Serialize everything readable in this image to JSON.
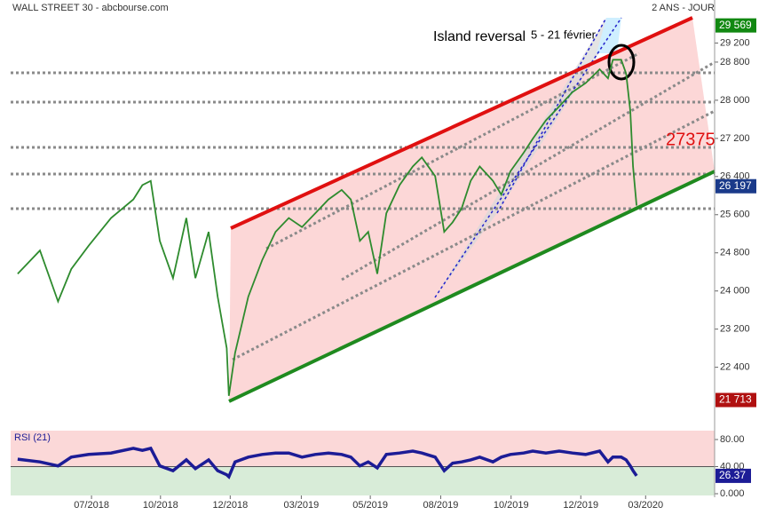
{
  "chart_data": [
    {
      "type": "line",
      "title": "WALL STREET 30 - abcbourse.com",
      "subtitle": "2 ANS - JOUR",
      "annotations": [
        "Island reversal",
        "5 - 21 février"
      ],
      "level_annotation": 27375,
      "xlim": [
        -1,
        100
      ],
      "xticks": [
        {
          "value": 10.6,
          "label": "07/2018"
        },
        {
          "value": 20.5,
          "label": "10/2018"
        },
        {
          "value": 30.5,
          "label": "12/2018"
        },
        {
          "value": 40.7,
          "label": "03/2019"
        },
        {
          "value": 50.6,
          "label": "05/2019"
        },
        {
          "value": 60.7,
          "label": "08/2019"
        },
        {
          "value": 70.8,
          "label": "10/2019"
        },
        {
          "value": 80.8,
          "label": "12/2019"
        },
        {
          "value": 90.1,
          "label": "03/2020"
        }
      ],
      "ylim": [
        21350,
        29730
      ],
      "yticks": [
        {
          "value": 29200,
          "label": "29 200"
        },
        {
          "value": 28800,
          "label": "28 800"
        },
        {
          "value": 28000,
          "label": "28 000"
        },
        {
          "value": 27200,
          "label": "27 200"
        },
        {
          "value": 26400,
          "label": "26 400"
        },
        {
          "value": 25600,
          "label": "25 600"
        },
        {
          "value": 24800,
          "label": "24 800"
        },
        {
          "value": 24000,
          "label": "24 000"
        },
        {
          "value": 23200,
          "label": "23 200"
        },
        {
          "value": 22400,
          "label": "22 400"
        }
      ],
      "price_labels": [
        {
          "value": 29569,
          "label": "29 569",
          "color": "#118811"
        },
        {
          "value": 26197,
          "label": "26 197",
          "color": "#1a3a8a"
        },
        {
          "value": 21713,
          "label": "21 713",
          "color": "#b01010"
        }
      ],
      "series": [
        {
          "color": "#2e8b2e",
          "x": [
            0.0,
            3.2,
            5.8,
            7.7,
            10.2,
            13.4,
            16.6,
            17.9,
            19.1,
            20.4,
            22.3,
            24.2,
            25.5,
            27.4,
            28.7,
            30.0,
            30.3,
            31.2,
            33.1,
            35.1,
            37.0,
            38.9,
            40.8,
            42.7,
            44.6,
            46.5,
            47.8,
            49.1,
            50.3,
            51.6,
            52.9,
            54.8,
            56.7,
            58.0,
            59.9,
            61.2,
            62.4,
            63.7,
            65.0,
            66.3,
            68.2,
            69.4,
            70.7,
            72.6,
            73.9,
            75.8,
            77.7,
            79.6,
            81.5,
            83.5,
            84.7,
            85.4,
            86.6,
            87.3,
            87.9,
            88.3,
            88.8
          ],
          "values": [
            24360,
            24850,
            23780,
            24460,
            24950,
            25530,
            25920,
            26220,
            26310,
            25050,
            24270,
            25530,
            24270,
            25240,
            23880,
            22800,
            21800,
            22700,
            23880,
            24650,
            25240,
            25530,
            25340,
            25630,
            25920,
            26120,
            25920,
            25050,
            25240,
            24360,
            25630,
            26220,
            26610,
            26800,
            26410,
            25240,
            25440,
            25730,
            26310,
            26610,
            26310,
            26020,
            26510,
            26900,
            27190,
            27580,
            27870,
            28170,
            28360,
            28650,
            28460,
            28850,
            28850,
            28560,
            27780,
            26610,
            25790
          ]
        }
      ]
    },
    {
      "type": "line",
      "title": "RSI (21)",
      "xlim": [
        -1,
        100
      ],
      "ylim": [
        -2.6,
        93.1
      ],
      "yticks": [
        {
          "value": 80,
          "label": "80.00"
        },
        {
          "value": 40,
          "label": "40.00"
        },
        {
          "value": 0,
          "label": "0.000"
        }
      ],
      "last_label": {
        "value": 26.37,
        "label": "26.37"
      },
      "series": [
        {
          "color": "#1c1c96",
          "x": [
            0.0,
            3.2,
            5.8,
            7.7,
            10.2,
            13.4,
            16.6,
            17.9,
            19.1,
            20.4,
            22.3,
            24.2,
            25.5,
            27.4,
            28.7,
            30.0,
            30.3,
            31.2,
            33.1,
            35.1,
            37.0,
            38.9,
            40.8,
            42.7,
            44.6,
            46.5,
            47.8,
            49.1,
            50.3,
            51.6,
            52.9,
            54.8,
            56.7,
            58.0,
            59.9,
            61.2,
            62.4,
            63.7,
            65.0,
            66.3,
            68.2,
            69.4,
            70.7,
            72.6,
            73.9,
            75.8,
            77.7,
            79.6,
            81.5,
            83.5,
            84.7,
            85.4,
            86.6,
            87.3,
            87.9,
            88.3,
            88.8
          ],
          "values": [
            51,
            47,
            41,
            54,
            58,
            60,
            67,
            64,
            67,
            41,
            34,
            50,
            37,
            50,
            34,
            28,
            25,
            47,
            54,
            58,
            60,
            60,
            54,
            58,
            60,
            58,
            54,
            41,
            47,
            38,
            58,
            60,
            63,
            60,
            54,
            34,
            45,
            47,
            50,
            54,
            47,
            54,
            58,
            60,
            63,
            60,
            63,
            60,
            58,
            63,
            47,
            54,
            54,
            50,
            41,
            34,
            26.37
          ]
        }
      ]
    }
  ]
}
